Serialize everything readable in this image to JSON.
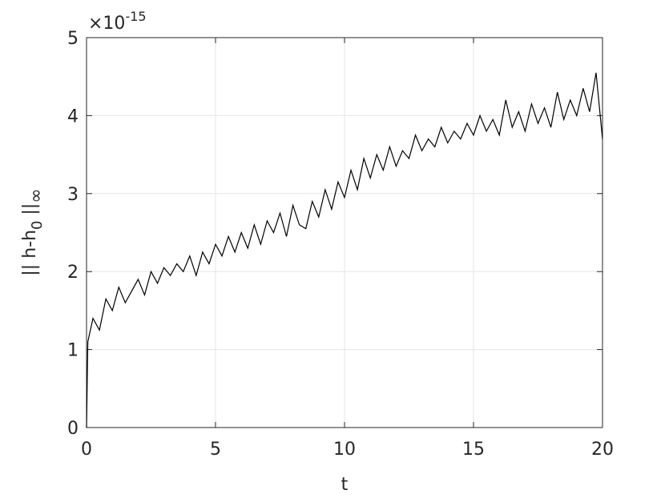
{
  "chart_data": {
    "type": "line",
    "y_multiplier": {
      "base": "×10",
      "exponent": "-15"
    },
    "xlabel": "t",
    "ylabel_parts": [
      "|| h-h",
      "0",
      " ||",
      "∞"
    ],
    "x": [
      0,
      0.05,
      0.25,
      0.5,
      0.75,
      1,
      1.25,
      1.5,
      1.75,
      2,
      2.25,
      2.5,
      2.75,
      3,
      3.25,
      3.5,
      3.75,
      4,
      4.25,
      4.5,
      4.75,
      5,
      5.25,
      5.5,
      5.75,
      6,
      6.25,
      6.5,
      6.75,
      7,
      7.25,
      7.5,
      7.75,
      8,
      8.25,
      8.5,
      8.75,
      9,
      9.25,
      9.5,
      9.75,
      10,
      10.25,
      10.5,
      10.75,
      11,
      11.25,
      11.5,
      11.75,
      12,
      12.25,
      12.5,
      12.75,
      13,
      13.25,
      13.5,
      13.75,
      14,
      14.25,
      14.5,
      14.75,
      15,
      15.25,
      15.5,
      15.75,
      16,
      16.25,
      16.5,
      16.75,
      17,
      17.25,
      17.5,
      17.75,
      18,
      18.25,
      18.5,
      18.75,
      19,
      19.25,
      19.5,
      19.75,
      20
    ],
    "series": [
      {
        "color": "#000000",
        "values": [
          0,
          1.1,
          1.4,
          1.25,
          1.65,
          1.5,
          1.8,
          1.6,
          1.75,
          1.9,
          1.7,
          2.0,
          1.85,
          2.05,
          1.95,
          2.1,
          2.0,
          2.2,
          1.95,
          2.25,
          2.1,
          2.35,
          2.2,
          2.45,
          2.25,
          2.5,
          2.3,
          2.6,
          2.35,
          2.65,
          2.5,
          2.75,
          2.45,
          2.85,
          2.6,
          2.55,
          2.9,
          2.7,
          3.05,
          2.8,
          3.15,
          2.95,
          3.3,
          3.05,
          3.45,
          3.2,
          3.5,
          3.3,
          3.6,
          3.35,
          3.55,
          3.45,
          3.75,
          3.55,
          3.7,
          3.6,
          3.85,
          3.65,
          3.8,
          3.7,
          3.9,
          3.75,
          4.0,
          3.8,
          3.95,
          3.75,
          4.2,
          3.85,
          4.05,
          3.8,
          4.15,
          3.9,
          4.1,
          3.85,
          4.3,
          3.95,
          4.2,
          4.0,
          4.35,
          4.05,
          4.55,
          3.7
        ]
      }
    ],
    "xlim": [
      0,
      20
    ],
    "ylim": [
      0,
      5
    ],
    "xticks": [
      0,
      5,
      10,
      15,
      20
    ],
    "yticks": [
      0,
      1,
      2,
      3,
      4,
      5
    ],
    "grid": true
  }
}
